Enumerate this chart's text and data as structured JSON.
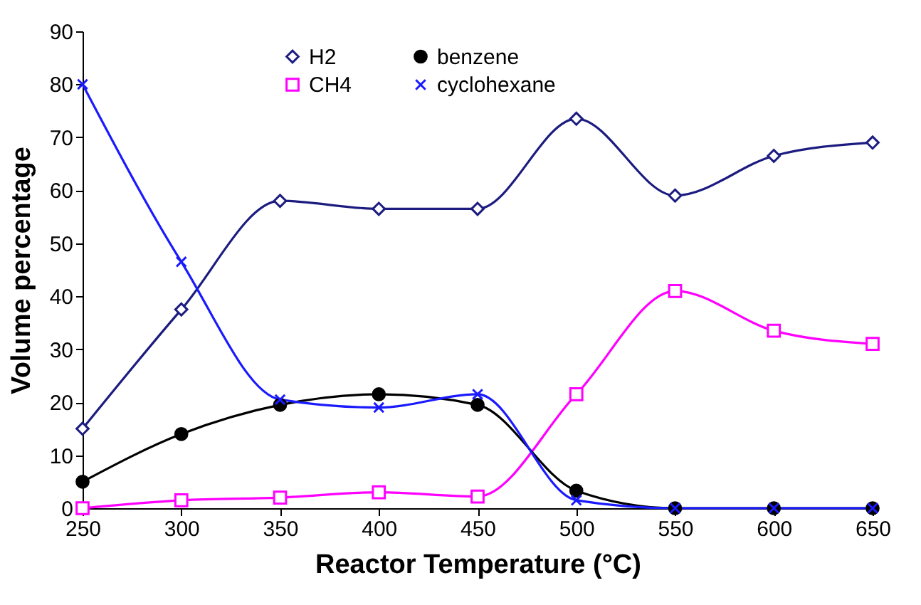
{
  "chart_data": {
    "type": "line",
    "xlabel": "Reactor Temperature (°C)",
    "ylabel": "Volume percentage",
    "x": [
      250,
      300,
      350,
      400,
      450,
      500,
      550,
      600,
      650
    ],
    "series": [
      {
        "name": "H2",
        "color": "#1c1c80",
        "marker": "diamond",
        "values": [
          15,
          37.5,
          58,
          56.5,
          56.5,
          73.5,
          59,
          66.5,
          69
        ]
      },
      {
        "name": "CH4",
        "color": "#ff00ff",
        "marker": "square",
        "values": [
          0,
          1.5,
          2,
          3,
          2.2,
          21.5,
          41,
          33.5,
          31
        ]
      },
      {
        "name": "benzene",
        "color": "#000000",
        "marker": "circle",
        "values": [
          5,
          14,
          19.5,
          21.5,
          19.5,
          3.3,
          0,
          0,
          0
        ]
      },
      {
        "name": "cyclohexane",
        "color": "#1a1aff",
        "marker": "cross",
        "values": [
          80,
          46.5,
          20.5,
          19,
          21.5,
          1.5,
          0,
          0,
          0
        ]
      }
    ],
    "xlim": [
      250,
      650
    ],
    "xticks": [
      250,
      300,
      350,
      400,
      450,
      500,
      550,
      600,
      650
    ],
    "ylim": [
      0,
      90
    ],
    "yticks": [
      0,
      10,
      20,
      30,
      40,
      50,
      60,
      70,
      80,
      90
    ],
    "grid": false,
    "legend": "top"
  }
}
